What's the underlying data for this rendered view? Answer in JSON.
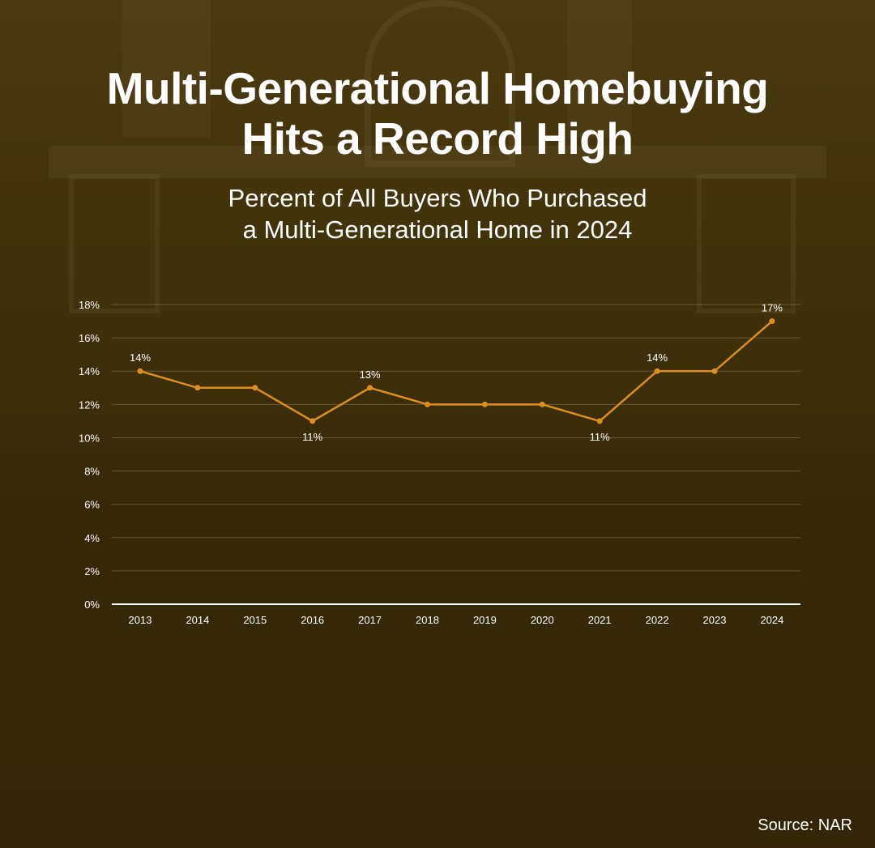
{
  "header": {
    "title_line1": "Multi-Generational Homebuying",
    "title_line2": "Hits a Record High",
    "subtitle_line1": "Percent of All Buyers Who Purchased",
    "subtitle_line2": "a Multi-Generational Home in 2024"
  },
  "footer": {
    "source": "Source: NAR"
  },
  "colors": {
    "line": "#e08e1b",
    "text": "#ffffff",
    "gridline": "#8a7a55"
  },
  "chart_data": {
    "type": "line",
    "title": "Percent of All Buyers Who Purchased a Multi-Generational Home in 2024",
    "xlabel": "",
    "ylabel": "",
    "x": [
      "2013",
      "2014",
      "2015",
      "2016",
      "2017",
      "2018",
      "2019",
      "2020",
      "2021",
      "2022",
      "2023",
      "2024"
    ],
    "series": [
      {
        "values": [
          14,
          13,
          13,
          11,
          13,
          12,
          12,
          12,
          11,
          14,
          14,
          17
        ]
      }
    ],
    "ylim": [
      0,
      18
    ],
    "yticks": [
      0,
      2,
      4,
      6,
      8,
      10,
      12,
      14,
      16,
      18
    ],
    "ytick_labels": [
      "0%",
      "2%",
      "4%",
      "6%",
      "8%",
      "10%",
      "12%",
      "14%",
      "16%",
      "18%"
    ],
    "data_labels": [
      {
        "x": "2013",
        "text": "14%",
        "position": "above"
      },
      {
        "x": "2016",
        "text": "11%",
        "position": "below"
      },
      {
        "x": "2017",
        "text": "13%",
        "position": "above"
      },
      {
        "x": "2021",
        "text": "11%",
        "position": "below"
      },
      {
        "x": "2022",
        "text": "14%",
        "position": "above"
      },
      {
        "x": "2024",
        "text": "17%",
        "position": "above"
      }
    ],
    "grid": true,
    "legend": "none"
  }
}
